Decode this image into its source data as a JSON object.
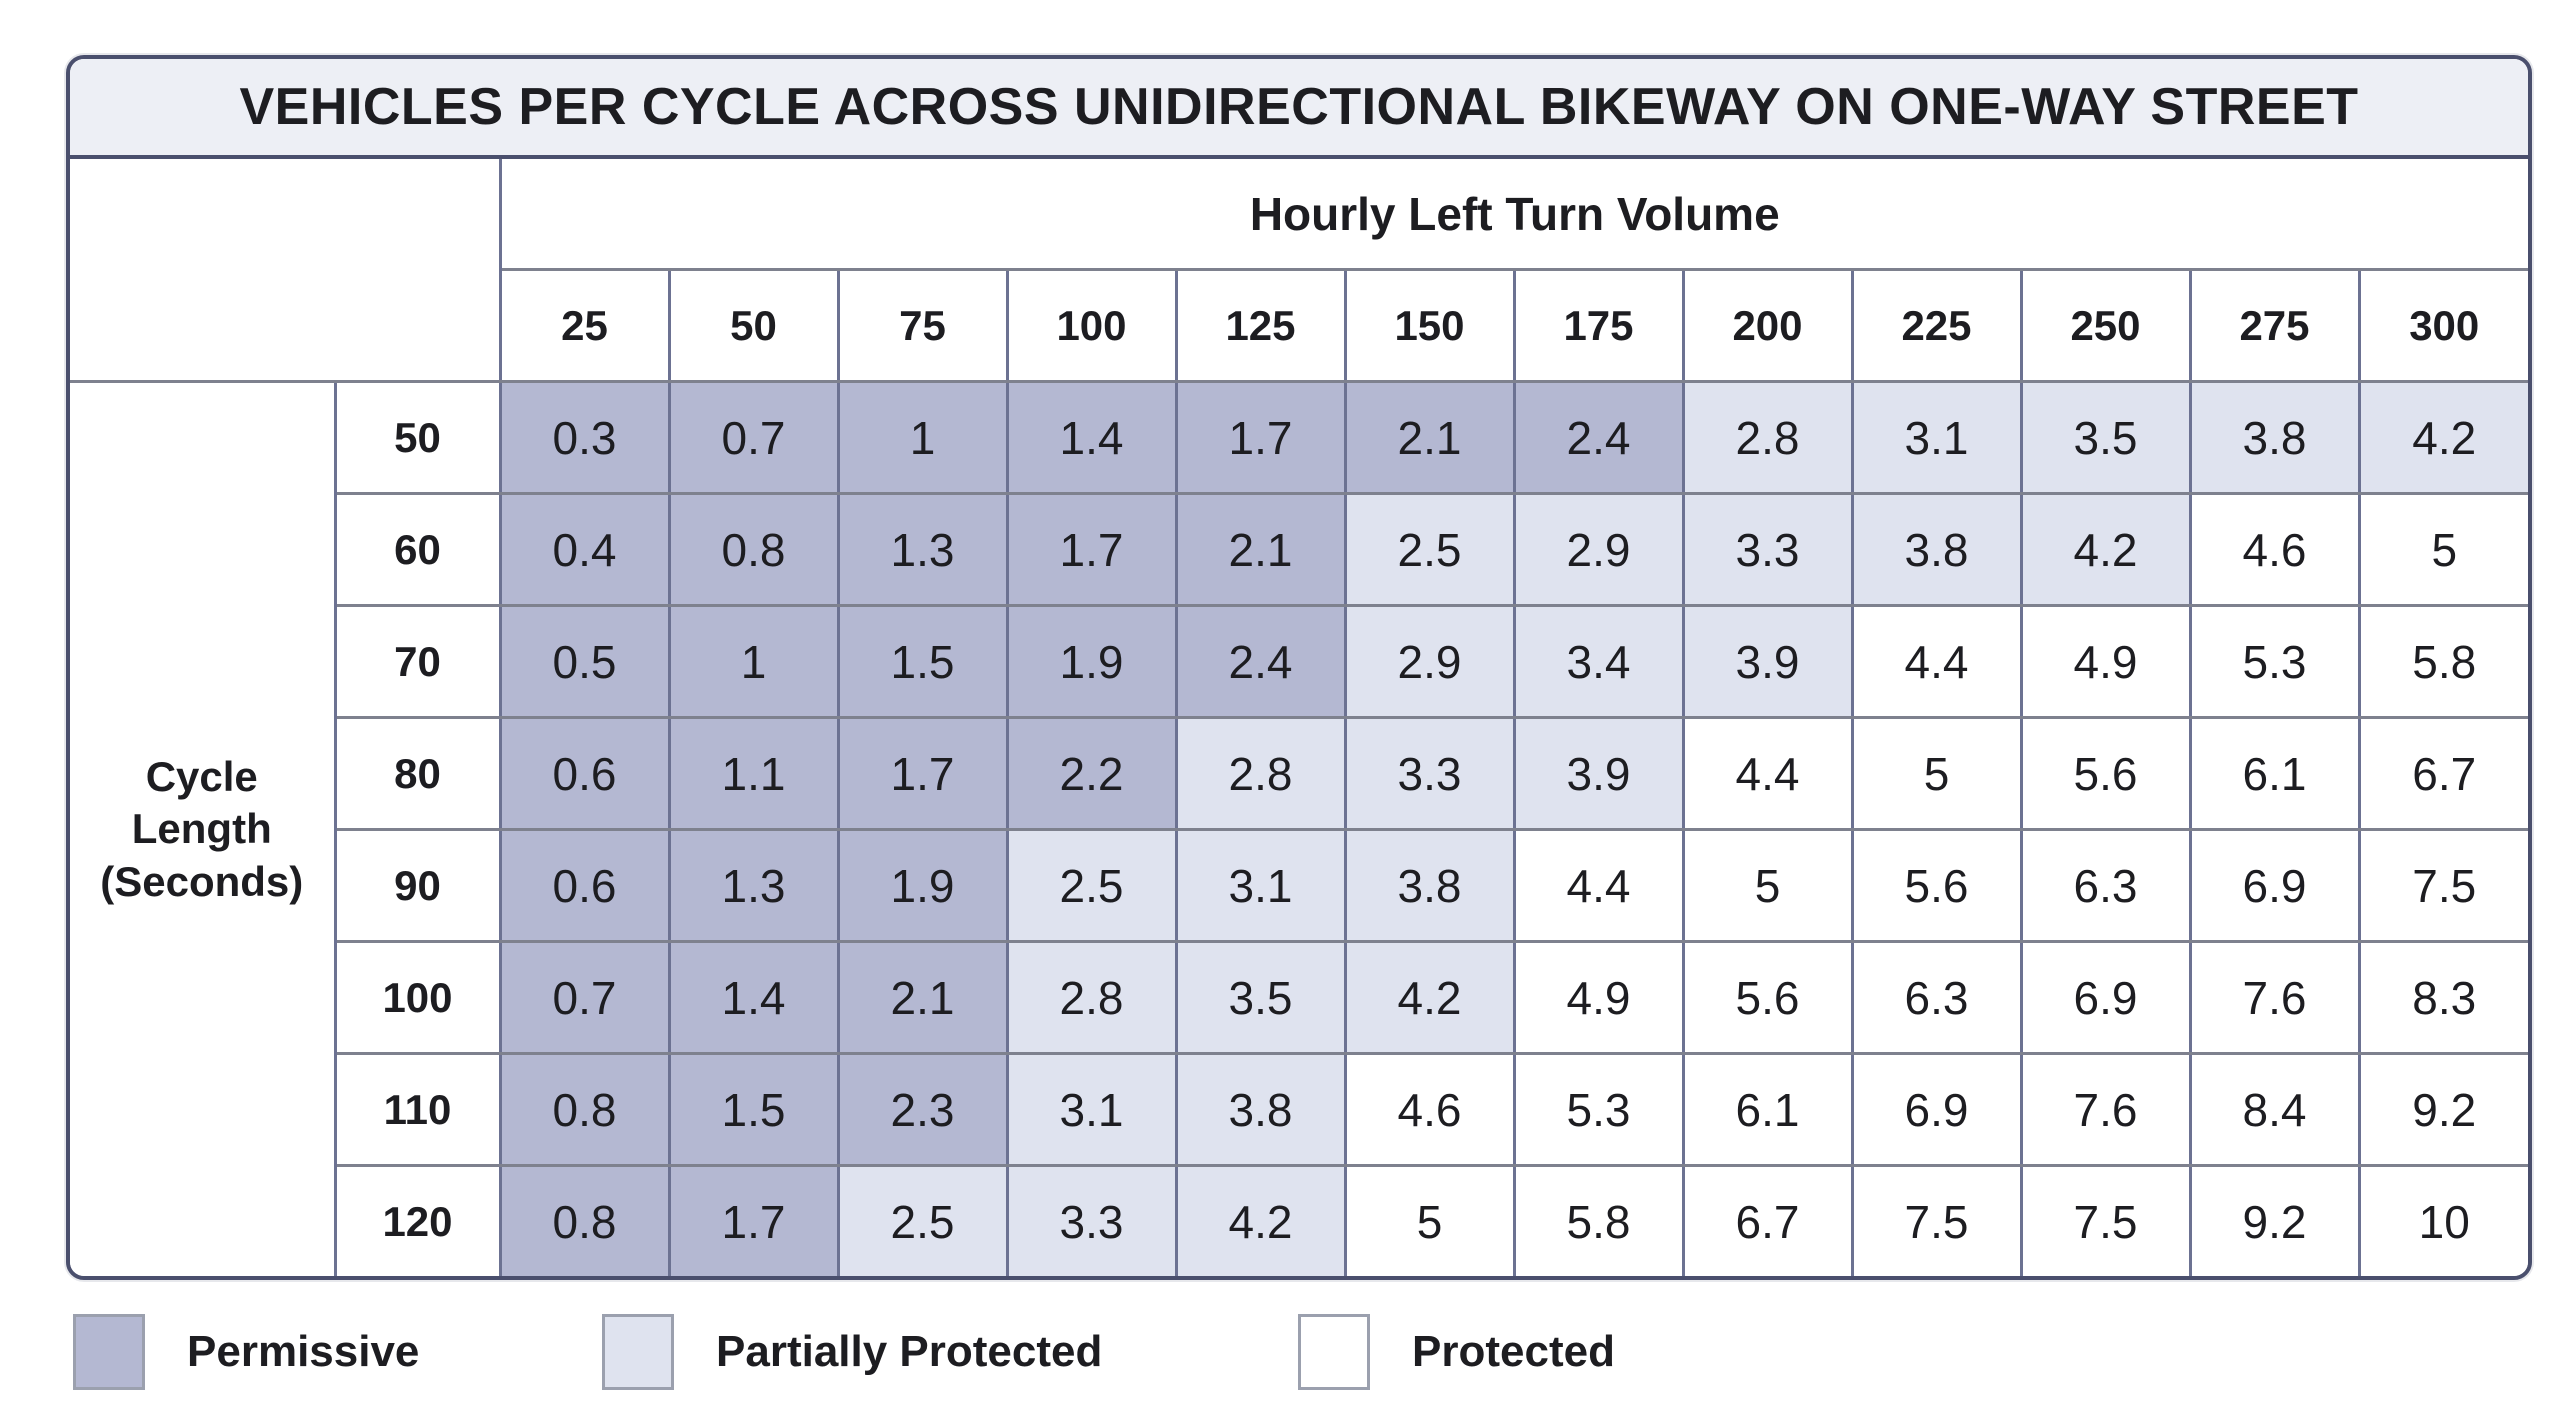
{
  "title": "VEHICLES PER CYCLE ACROSS UNIDIRECTIONAL BIKEWAY ON ONE-WAY STREET",
  "header": {
    "col_group_label": "Hourly Left Turn Volume",
    "row_group_label": "Cycle\nLength\n(Seconds)"
  },
  "chart_data": {
    "type": "heatmap",
    "title": "Vehicles Per Cycle Across Unidirectional Bikeway on One-Way Street",
    "xlabel": "Hourly Left Turn Volume",
    "ylabel": "Cycle Length (Seconds)",
    "columns": [
      "25",
      "50",
      "75",
      "100",
      "125",
      "150",
      "175",
      "200",
      "225",
      "250",
      "275",
      "300"
    ],
    "row_labels": [
      "50",
      "60",
      "70",
      "80",
      "90",
      "100",
      "110",
      "120"
    ],
    "values": [
      [
        "0.3",
        "0.7",
        "1",
        "1.4",
        "1.7",
        "2.1",
        "2.4",
        "2.8",
        "3.1",
        "3.5",
        "3.8",
        "4.2"
      ],
      [
        "0.4",
        "0.8",
        "1.3",
        "1.7",
        "2.1",
        "2.5",
        "2.9",
        "3.3",
        "3.8",
        "4.2",
        "4.6",
        "5"
      ],
      [
        "0.5",
        "1",
        "1.5",
        "1.9",
        "2.4",
        "2.9",
        "3.4",
        "3.9",
        "4.4",
        "4.9",
        "5.3",
        "5.8"
      ],
      [
        "0.6",
        "1.1",
        "1.7",
        "2.2",
        "2.8",
        "3.3",
        "3.9",
        "4.4",
        "5",
        "5.6",
        "6.1",
        "6.7"
      ],
      [
        "0.6",
        "1.3",
        "1.9",
        "2.5",
        "3.1",
        "3.8",
        "4.4",
        "5",
        "5.6",
        "6.3",
        "6.9",
        "7.5"
      ],
      [
        "0.7",
        "1.4",
        "2.1",
        "2.8",
        "3.5",
        "4.2",
        "4.9",
        "5.6",
        "6.3",
        "6.9",
        "7.6",
        "8.3"
      ],
      [
        "0.8",
        "1.5",
        "2.3",
        "3.1",
        "3.8",
        "4.6",
        "5.3",
        "6.1",
        "6.9",
        "7.6",
        "8.4",
        "9.2"
      ],
      [
        "0.8",
        "1.7",
        "2.5",
        "3.3",
        "4.2",
        "5",
        "5.8",
        "6.7",
        "7.5",
        "7.5",
        "9.2",
        "10"
      ]
    ],
    "categories": [
      [
        "permissive",
        "permissive",
        "permissive",
        "permissive",
        "permissive",
        "permissive",
        "permissive",
        "partial",
        "partial",
        "partial",
        "partial",
        "partial"
      ],
      [
        "permissive",
        "permissive",
        "permissive",
        "permissive",
        "permissive",
        "partial",
        "partial",
        "partial",
        "partial",
        "partial",
        "protected",
        "protected"
      ],
      [
        "permissive",
        "permissive",
        "permissive",
        "permissive",
        "permissive",
        "partial",
        "partial",
        "partial",
        "protected",
        "protected",
        "protected",
        "protected"
      ],
      [
        "permissive",
        "permissive",
        "permissive",
        "permissive",
        "partial",
        "partial",
        "partial",
        "protected",
        "protected",
        "protected",
        "protected",
        "protected"
      ],
      [
        "permissive",
        "permissive",
        "permissive",
        "partial",
        "partial",
        "partial",
        "protected",
        "protected",
        "protected",
        "protected",
        "protected",
        "protected"
      ],
      [
        "permissive",
        "permissive",
        "permissive",
        "partial",
        "partial",
        "partial",
        "protected",
        "protected",
        "protected",
        "protected",
        "protected",
        "protected"
      ],
      [
        "permissive",
        "permissive",
        "permissive",
        "partial",
        "partial",
        "protected",
        "protected",
        "protected",
        "protected",
        "protected",
        "protected",
        "protected"
      ],
      [
        "permissive",
        "permissive",
        "partial",
        "partial",
        "partial",
        "protected",
        "protected",
        "protected",
        "protected",
        "protected",
        "protected",
        "protected"
      ]
    ],
    "legend_position": "bottom"
  },
  "legend": {
    "items": [
      {
        "key": "permissive",
        "label": "Permissive",
        "color": "#b4b8d2"
      },
      {
        "key": "partial",
        "label": "Partially Protected",
        "color": "#dfe3ef"
      },
      {
        "key": "protected",
        "label": "Protected",
        "color": "#ffffff"
      }
    ]
  },
  "colors": {
    "permissive": "#b4b8d2",
    "partial": "#dfe3ef",
    "protected": "#ffffff",
    "header_bg": "#edeff5",
    "outer_border": "#4a4f6d",
    "grid_h": "#7e818e",
    "grid_v": "#6c7292",
    "text": "#1d1d21"
  }
}
